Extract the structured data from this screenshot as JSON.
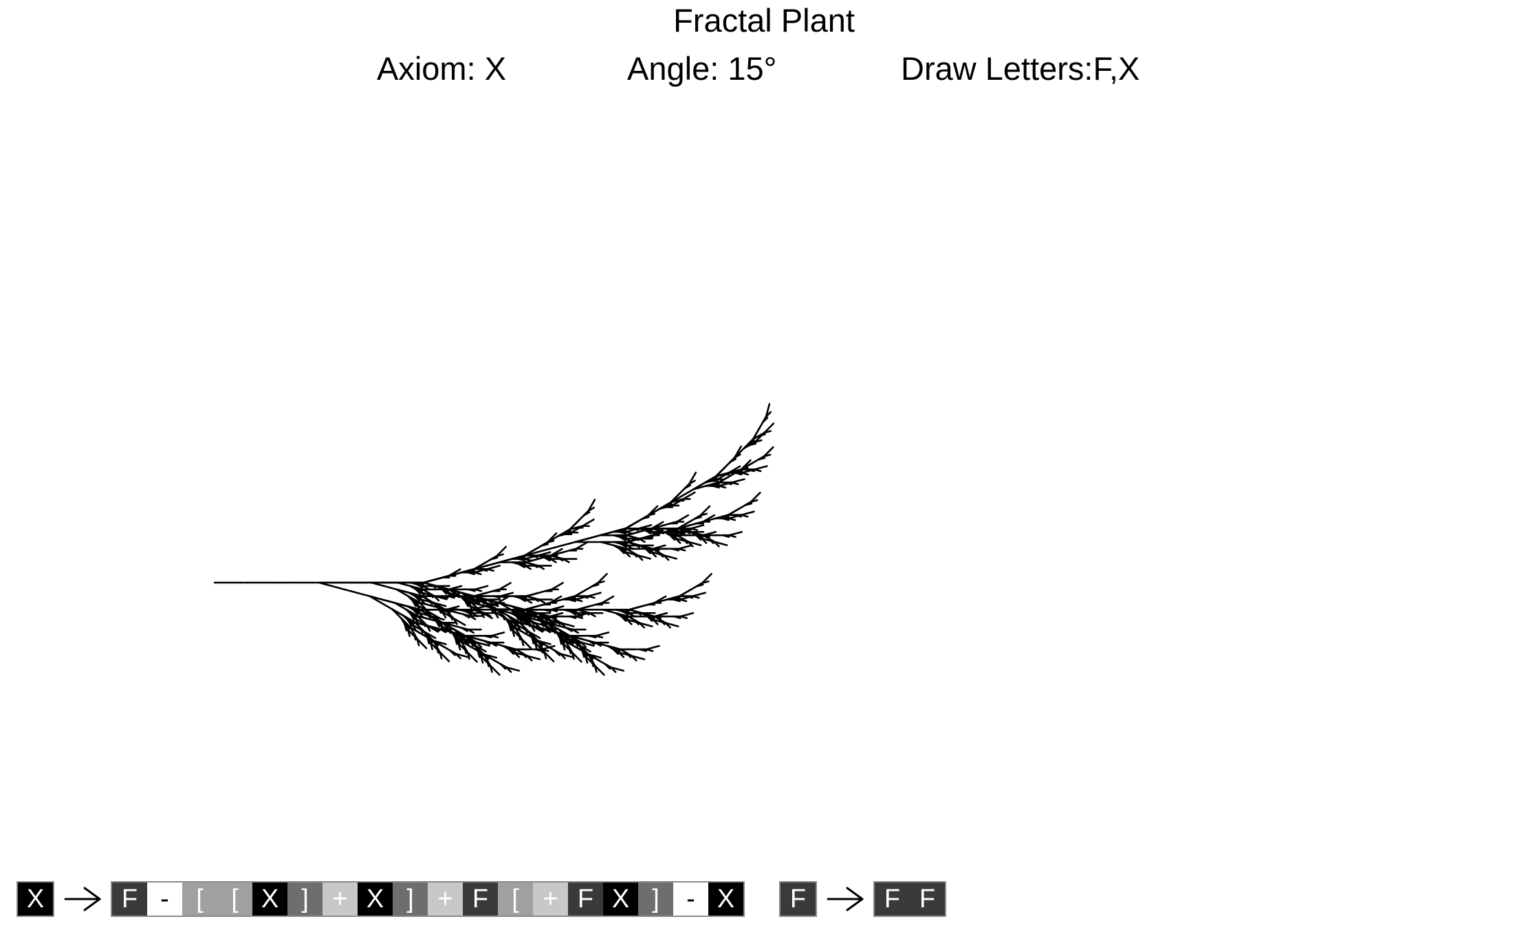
{
  "title": "Fractal Plant",
  "axiom_label": "Axiom: X",
  "angle_label": "Angle: 15°",
  "draw_letters_label": "Draw Letters:F,X",
  "lsystem": {
    "axiom": "X",
    "angle_deg": 15,
    "iterations": 5
  },
  "symbol_colors": {
    "X": {
      "bg": "#000000",
      "fg": "#ffffff"
    },
    "F": {
      "bg": "#3a3a3a",
      "fg": "#ffffff"
    },
    "-": {
      "bg": "#ffffff",
      "fg": "#000000"
    },
    "+": {
      "bg": "#c8c8c8",
      "fg": "#ffffff"
    },
    "[": {
      "bg": "#a0a0a0",
      "fg": "#ffffff"
    },
    "]": {
      "bg": "#6e6e6e",
      "fg": "#ffffff"
    }
  },
  "rules": [
    {
      "symbol": "X",
      "replacement": [
        "F",
        "-",
        "[",
        "[",
        "X",
        "]",
        "+",
        "X",
        "]",
        "+",
        "F",
        "[",
        "+",
        "F",
        "X",
        "]",
        "-",
        "X"
      ]
    },
    {
      "symbol": "F",
      "replacement": [
        "F",
        "F"
      ]
    }
  ]
}
